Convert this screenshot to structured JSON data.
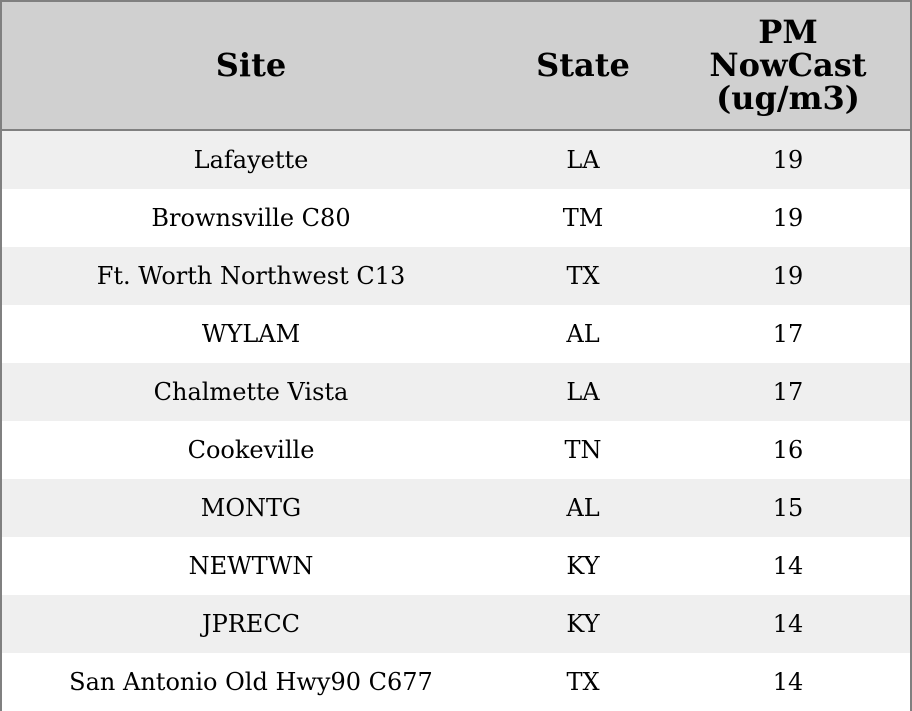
{
  "table": {
    "headers": [
      "Site",
      "State",
      "PM\nNowCast\n(ug/m3)"
    ],
    "header_lines": {
      "pm": [
        "PM",
        "NowCast",
        "(ug/m3)"
      ]
    },
    "rows": [
      [
        "Lafayette",
        "LA",
        "19"
      ],
      [
        "Brownsville C80",
        "TM",
        "19"
      ],
      [
        "Ft. Worth Northwest C13",
        "TX",
        "19"
      ],
      [
        "WYLAM",
        "AL",
        "17"
      ],
      [
        "Chalmette Vista",
        "LA",
        "17"
      ],
      [
        "Cookeville",
        "TN",
        "16"
      ],
      [
        "MONTG",
        "AL",
        "15"
      ],
      [
        "NEWTWN",
        "KY",
        "14"
      ],
      [
        "JPRECC",
        "KY",
        "14"
      ],
      [
        "San Antonio Old Hwy90 C677",
        "TX",
        "14"
      ]
    ]
  },
  "colors": {
    "header_bg": "#d0d0d0",
    "row_alt_bg": "#efefef",
    "border": "#808080"
  }
}
